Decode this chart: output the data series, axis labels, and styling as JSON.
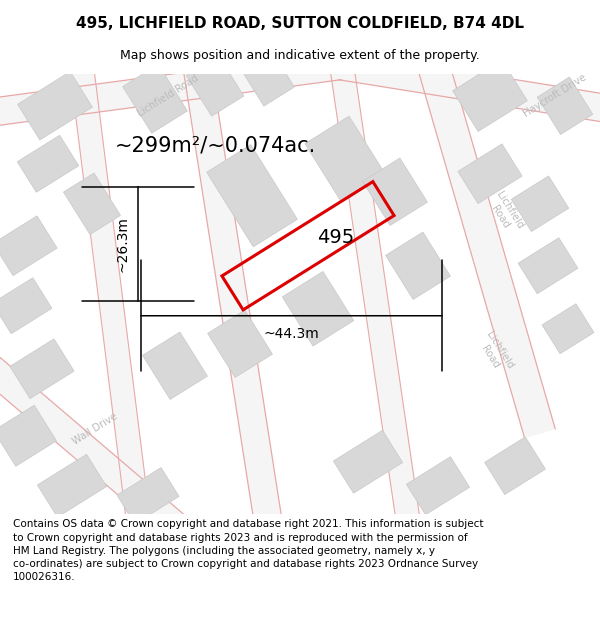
{
  "title": "495, LICHFIELD ROAD, SUTTON COLDFIELD, B74 4DL",
  "subtitle": "Map shows position and indicative extent of the property.",
  "area_label": "~299m²/~0.074ac.",
  "property_label": "495",
  "dim_width": "~44.3m",
  "dim_height": "~26.3m",
  "footer": "Contains OS data © Crown copyright and database right 2021. This information is subject\nto Crown copyright and database rights 2023 and is reproduced with the permission of\nHM Land Registry. The polygons (including the associated geometry, namely x, y\nco-ordinates) are subject to Crown copyright and database rights 2023 Ordnance Survey\n100026316.",
  "bg_color": "#f7f7f7",
  "road_fill": "#f7f7f7",
  "road_line": "#e8a8a8",
  "building_fill": "#d8d8d8",
  "building_edge": "#c8c8c8",
  "property_color": "#dd0000",
  "road_label_color": "#bbbbbb",
  "title_fontsize": 11,
  "subtitle_fontsize": 9,
  "area_fontsize": 15,
  "property_label_fontsize": 14,
  "dim_fontsize": 10,
  "footer_fontsize": 7.5
}
